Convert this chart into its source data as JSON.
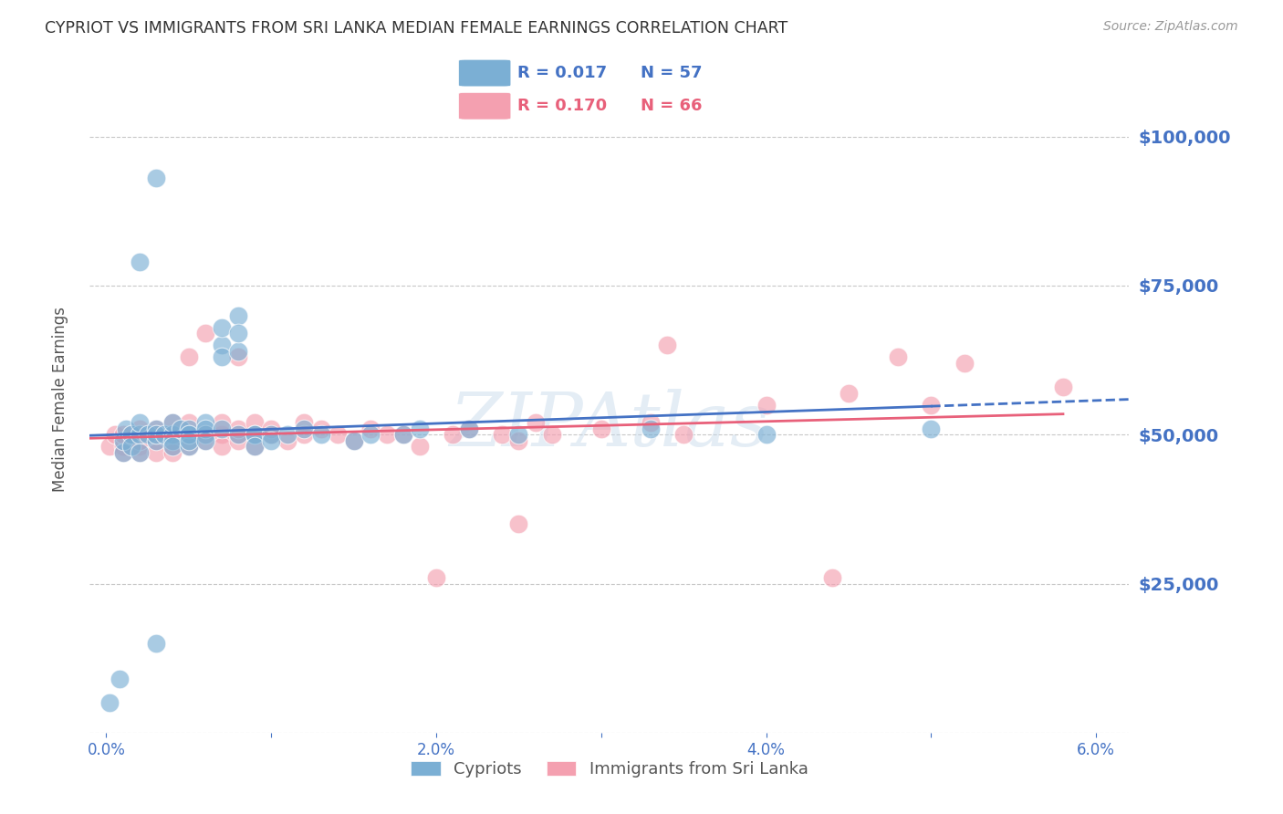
{
  "title": "CYPRIOT VS IMMIGRANTS FROM SRI LANKA MEDIAN FEMALE EARNINGS CORRELATION CHART",
  "source": "Source: ZipAtlas.com",
  "ylabel_label": "Median Female Earnings",
  "x_ticks": [
    0.0,
    0.01,
    0.02,
    0.03,
    0.04,
    0.05,
    0.06
  ],
  "x_tick_labels": [
    "0.0%",
    "",
    "2.0%",
    "",
    "4.0%",
    "",
    "6.0%"
  ],
  "y_ticks": [
    0,
    25000,
    50000,
    75000,
    100000
  ],
  "y_tick_labels": [
    "",
    "$25,000",
    "$50,000",
    "$75,000",
    "$100,000"
  ],
  "xlim": [
    -0.001,
    0.062
  ],
  "ylim": [
    0,
    112000
  ],
  "watermark": "ZIPAtlas",
  "background_color": "#ffffff",
  "grid_color": "#c8c8c8",
  "title_color": "#333333",
  "axis_label_color": "#555555",
  "tick_label_color": "#4472c4",
  "series1_color": "#7bafd4",
  "series2_color": "#f4a0b0",
  "series1_edge_color": "#5a9abf",
  "series2_edge_color": "#e0788a",
  "series1_line_color": "#4472c4",
  "series2_line_color": "#e8607a",
  "series1_label": "Cypriots",
  "series2_label": "Immigrants from Sri Lanka",
  "legend_R1": "0.017",
  "legend_N1": "57",
  "legend_R2": "0.170",
  "legend_N2": "66",
  "series1_x": [
    0.0002,
    0.0008,
    0.001,
    0.001,
    0.0012,
    0.0015,
    0.0015,
    0.002,
    0.002,
    0.002,
    0.0025,
    0.003,
    0.003,
    0.003,
    0.003,
    0.0035,
    0.004,
    0.004,
    0.004,
    0.004,
    0.0045,
    0.005,
    0.005,
    0.005,
    0.005,
    0.005,
    0.006,
    0.006,
    0.006,
    0.006,
    0.007,
    0.007,
    0.007,
    0.007,
    0.008,
    0.008,
    0.008,
    0.008,
    0.009,
    0.009,
    0.009,
    0.01,
    0.01,
    0.011,
    0.012,
    0.013,
    0.015,
    0.016,
    0.018,
    0.019,
    0.022,
    0.025,
    0.033,
    0.04,
    0.05,
    0.002,
    0.003
  ],
  "series1_y": [
    5000,
    9000,
    47000,
    49000,
    51000,
    50000,
    48000,
    50000,
    52000,
    47000,
    50000,
    51000,
    49000,
    50000,
    15000,
    50000,
    50000,
    52000,
    49000,
    48000,
    51000,
    50000,
    48000,
    51000,
    50000,
    49000,
    52000,
    50000,
    51000,
    49000,
    51000,
    65000,
    63000,
    68000,
    70000,
    50000,
    64000,
    67000,
    50000,
    50000,
    48000,
    50000,
    49000,
    50000,
    51000,
    50000,
    49000,
    50000,
    50000,
    51000,
    51000,
    50000,
    51000,
    50000,
    51000,
    79000,
    93000
  ],
  "series2_x": [
    0.0002,
    0.0005,
    0.001,
    0.001,
    0.001,
    0.0015,
    0.002,
    0.002,
    0.002,
    0.002,
    0.003,
    0.003,
    0.003,
    0.003,
    0.004,
    0.004,
    0.004,
    0.004,
    0.005,
    0.005,
    0.005,
    0.005,
    0.006,
    0.006,
    0.006,
    0.007,
    0.007,
    0.007,
    0.008,
    0.008,
    0.008,
    0.008,
    0.009,
    0.009,
    0.009,
    0.01,
    0.01,
    0.011,
    0.012,
    0.012,
    0.013,
    0.014,
    0.015,
    0.016,
    0.017,
    0.018,
    0.019,
    0.02,
    0.021,
    0.022,
    0.024,
    0.025,
    0.026,
    0.027,
    0.03,
    0.033,
    0.035,
    0.04,
    0.045,
    0.05,
    0.052,
    0.025,
    0.034,
    0.044,
    0.048,
    0.058
  ],
  "series2_y": [
    48000,
    50000,
    48000,
    50000,
    47000,
    50000,
    48000,
    51000,
    47000,
    49000,
    50000,
    49000,
    51000,
    47000,
    50000,
    52000,
    48000,
    47000,
    50000,
    52000,
    48000,
    63000,
    50000,
    67000,
    49000,
    50000,
    52000,
    48000,
    50000,
    63000,
    49000,
    51000,
    50000,
    52000,
    48000,
    50000,
    51000,
    49000,
    52000,
    50000,
    51000,
    50000,
    49000,
    51000,
    50000,
    50000,
    48000,
    26000,
    50000,
    51000,
    50000,
    49000,
    52000,
    50000,
    51000,
    52000,
    50000,
    55000,
    57000,
    55000,
    62000,
    35000,
    65000,
    26000,
    63000,
    58000
  ]
}
